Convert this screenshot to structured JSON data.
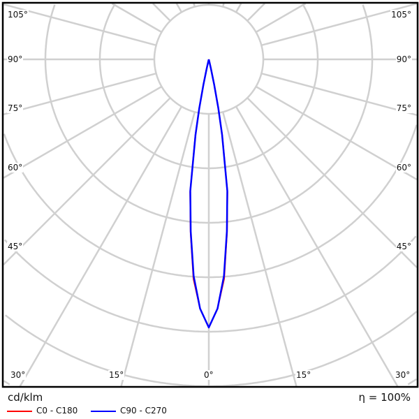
{
  "chart_data": {
    "type": "polar",
    "unit_label": "cd/klm",
    "efficiency_label": "η = 100%",
    "angle_labels_left": [
      "105°",
      "90°",
      "75°",
      "60°",
      "45°",
      "30°"
    ],
    "angle_labels_right": [
      "105°",
      "90°",
      "75°",
      "60°",
      "45°",
      "30°"
    ],
    "bottom_labels": [
      "30°",
      "15°",
      "0°",
      "15°",
      "30°"
    ],
    "angle_grid_step_deg": 15,
    "grid": true,
    "intensity_scale": "relative to peak (no ring values printed)",
    "gamma_deg": [
      0,
      2,
      4,
      6,
      8,
      10,
      11,
      12,
      13,
      14,
      15
    ],
    "series": [
      {
        "name": "C0 - C180",
        "color": "#ff0000",
        "values": [
          1.0,
          0.93,
          0.82,
          0.65,
          0.5,
          0.29,
          0.19,
          0.1,
          0.04,
          0.01,
          0.0
        ]
      },
      {
        "name": "C90 - C270",
        "color": "#0000ff",
        "values": [
          1.0,
          0.93,
          0.81,
          0.645,
          0.495,
          0.285,
          0.185,
          0.095,
          0.035,
          0.01,
          0.0
        ]
      }
    ],
    "legend_position": "bottom-left"
  }
}
